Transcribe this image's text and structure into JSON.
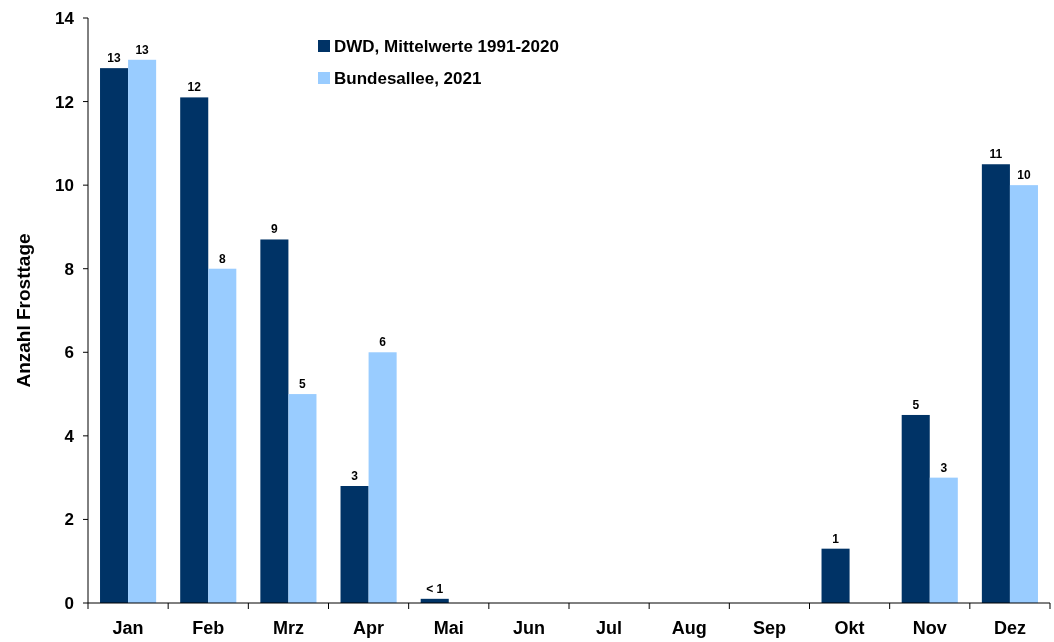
{
  "chart_data": {
    "type": "bar",
    "ylabel": "Anzahl Frosttage",
    "categories": [
      "Jan",
      "Feb",
      "Mrz",
      "Apr",
      "Mai",
      "Jun",
      "Jul",
      "Aug",
      "Sep",
      "Okt",
      "Nov",
      "Dez"
    ],
    "series": [
      {
        "name": "DWD, Mittelwerte 1991-2020",
        "color": "#003366",
        "values": [
          12.8,
          12.1,
          8.7,
          2.8,
          0.1,
          0,
          0,
          0,
          0,
          1.3,
          4.5,
          10.5
        ],
        "value_labels": [
          "13",
          "12",
          "9",
          "3",
          "< 1",
          null,
          null,
          null,
          null,
          "1",
          "5",
          "11"
        ]
      },
      {
        "name": "Bundesallee, 2021",
        "color": "#99ccff",
        "values": [
          13,
          8,
          5,
          6,
          0,
          0,
          0,
          0,
          0,
          0,
          3,
          10
        ],
        "value_labels": [
          "13",
          "8",
          "5",
          "6",
          null,
          null,
          null,
          null,
          null,
          null,
          "3",
          "10"
        ]
      }
    ],
    "ylim": [
      0,
      14
    ],
    "yticks": [
      0,
      2,
      4,
      6,
      8,
      10,
      12,
      14
    ],
    "grid": false,
    "legend": "top"
  }
}
